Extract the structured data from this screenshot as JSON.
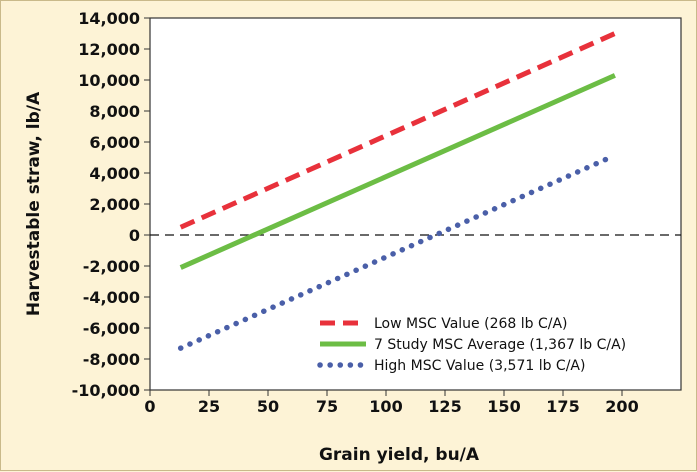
{
  "chart_data": {
    "type": "line",
    "title": "",
    "xlabel": "Grain yield, bu/A",
    "ylabel": "Harvestable straw, lb/A",
    "xlim": [
      0,
      225
    ],
    "ylim": [
      -10000,
      14000
    ],
    "x_ticks": [
      "0",
      "25",
      "50",
      "75",
      "100",
      "125",
      "150",
      "175",
      "200"
    ],
    "y_ticks": [
      "14,000",
      "12,000",
      "10,000",
      "8,000",
      "6,000",
      "4,000",
      "2,000",
      "0",
      "-2,000",
      "-4,000",
      "-6,000",
      "-8,000",
      "-10,000"
    ],
    "grid": false,
    "zero_line": "dashed",
    "legend_position": "bottom-right",
    "series": [
      {
        "name": "Low MSC Value (268 lb C/A)",
        "color": "#e8313b",
        "style": "dashed",
        "x": [
          13,
          197
        ],
        "y": [
          500,
          13000
        ]
      },
      {
        "name": "7 Study MSC Average (1,367 lb C/A)",
        "color": "#6cbd45",
        "style": "solid",
        "x": [
          13,
          197
        ],
        "y": [
          -2100,
          10300
        ]
      },
      {
        "name": "High MSC Value (3,571 lb C/A)",
        "color": "#4a5fa8",
        "style": "dotted",
        "x": [
          13,
          195
        ],
        "y": [
          -7300,
          5000
        ]
      }
    ]
  }
}
